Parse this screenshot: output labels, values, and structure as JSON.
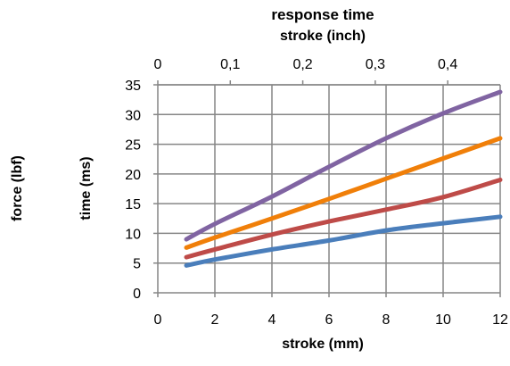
{
  "chart_data": {
    "type": "line",
    "title": "response time",
    "x2label": "stroke (inch)",
    "x2ticks": [
      "0",
      "0,1",
      "0,2",
      "0,3",
      "0,4"
    ],
    "x2lim": [
      0,
      0.4724
    ],
    "xlabel": "stroke (mm)",
    "xticks": [
      "0",
      "2",
      "4",
      "6",
      "8",
      "10",
      "12"
    ],
    "xlim": [
      0,
      12
    ],
    "ylabel": "time (ms)",
    "yticks": [
      "0",
      "5",
      "10",
      "15",
      "20",
      "25",
      "30",
      "35"
    ],
    "ylim": [
      0,
      35
    ],
    "y2label": "force (lbf)",
    "grid": true,
    "legend": "none",
    "series": [
      {
        "color": "#4A7EBB",
        "x": [
          1,
          2,
          4,
          6,
          8,
          10,
          12
        ],
        "y": [
          4.6,
          5.6,
          7.3,
          8.8,
          10.5,
          11.7,
          12.8
        ]
      },
      {
        "color": "#BE4B48",
        "x": [
          1,
          2,
          4,
          6,
          8,
          10,
          12
        ],
        "y": [
          6.0,
          7.3,
          9.8,
          12.0,
          14.0,
          16.1,
          19.0
        ]
      },
      {
        "color": "#F07F09",
        "x": [
          1,
          2,
          4,
          6,
          8,
          10,
          12
        ],
        "y": [
          7.6,
          9.3,
          12.5,
          15.8,
          19.2,
          22.6,
          26.0
        ]
      },
      {
        "color": "#8064A2",
        "x": [
          1,
          2,
          4,
          6,
          8,
          10,
          12
        ],
        "y": [
          9.0,
          11.6,
          16.2,
          21.2,
          26.0,
          30.2,
          33.8
        ]
      }
    ]
  }
}
